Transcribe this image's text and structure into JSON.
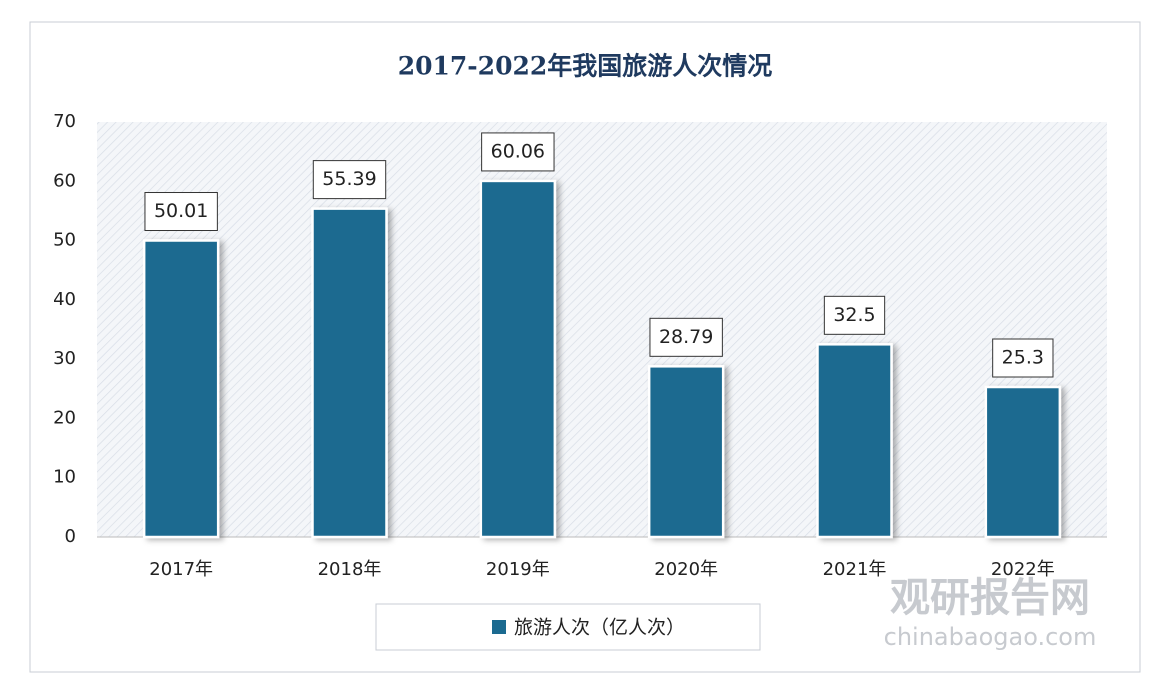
{
  "chart_data": {
    "type": "bar",
    "title": "2017-2022年我国旅游人次情况",
    "categories": [
      "2017年",
      "2018年",
      "2019年",
      "2020年",
      "2021年",
      "2022年"
    ],
    "series": [
      {
        "name": "旅游人次（亿人次）",
        "color": "#1b6a90",
        "values": [
          50.01,
          55.39,
          60.06,
          28.79,
          32.5,
          25.3
        ]
      }
    ],
    "ylim": [
      0,
      70
    ],
    "yticks": [
      0,
      10,
      20,
      30,
      40,
      50,
      60,
      70
    ],
    "grid": false,
    "watermark": {
      "brand": "观研报告网",
      "url": "chinabaogao.com"
    }
  }
}
